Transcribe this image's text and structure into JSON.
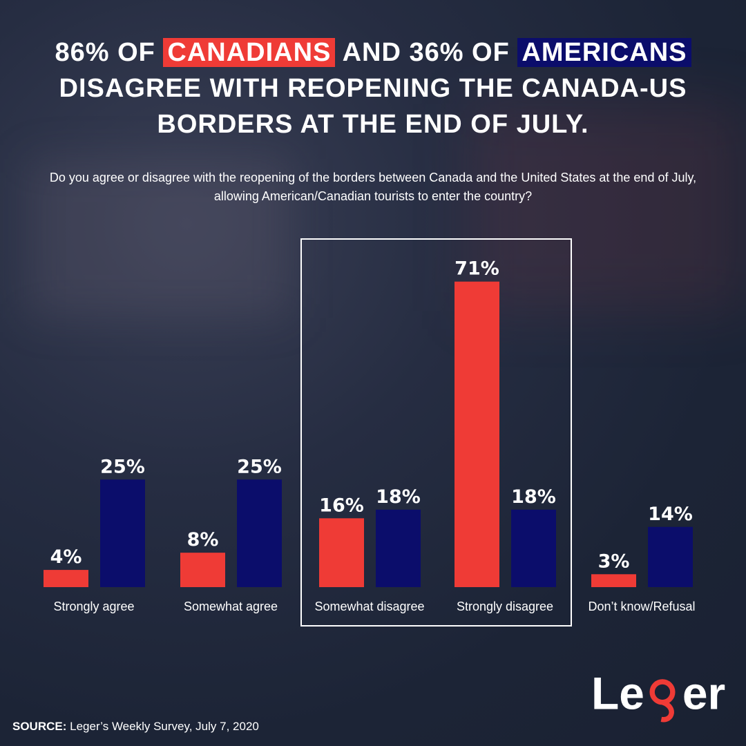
{
  "title": {
    "part1": "86% OF",
    "highlight1": "CANADIANS",
    "part2": "AND 36% OF",
    "highlight2": "AMERICANS",
    "line2": "DISAGREE WITH REOPENING THE CANADA-US",
    "line3": "BORDERS AT THE END OF JULY."
  },
  "question": "Do you agree or disagree with the reopening of the borders between Canada and the United States at the end of July, allowing American/Canadian tourists to enter the country?",
  "colors": {
    "canada": "#ef3b36",
    "usa": "#0b0d6b",
    "background": "#1e2638"
  },
  "chart_data": {
    "type": "bar",
    "categories": [
      "Strongly agree",
      "Somewhat agree",
      "Somewhat disagree",
      "Strongly disagree",
      "Don’t know/Refusal"
    ],
    "series": [
      {
        "values": [
          4,
          8,
          16,
          71,
          3
        ],
        "color": "#ef3b36"
      },
      {
        "values": [
          25,
          25,
          18,
          18,
          14
        ],
        "color": "#0b0d6b"
      }
    ],
    "value_suffix": "%",
    "highlighted_categories": [
      "Somewhat disagree",
      "Strongly disagree"
    ]
  },
  "source": {
    "label": "SOURCE:",
    "text": "Leger’s Weekly Survey, July 7, 2020"
  },
  "logo": {
    "text": "Leger"
  }
}
